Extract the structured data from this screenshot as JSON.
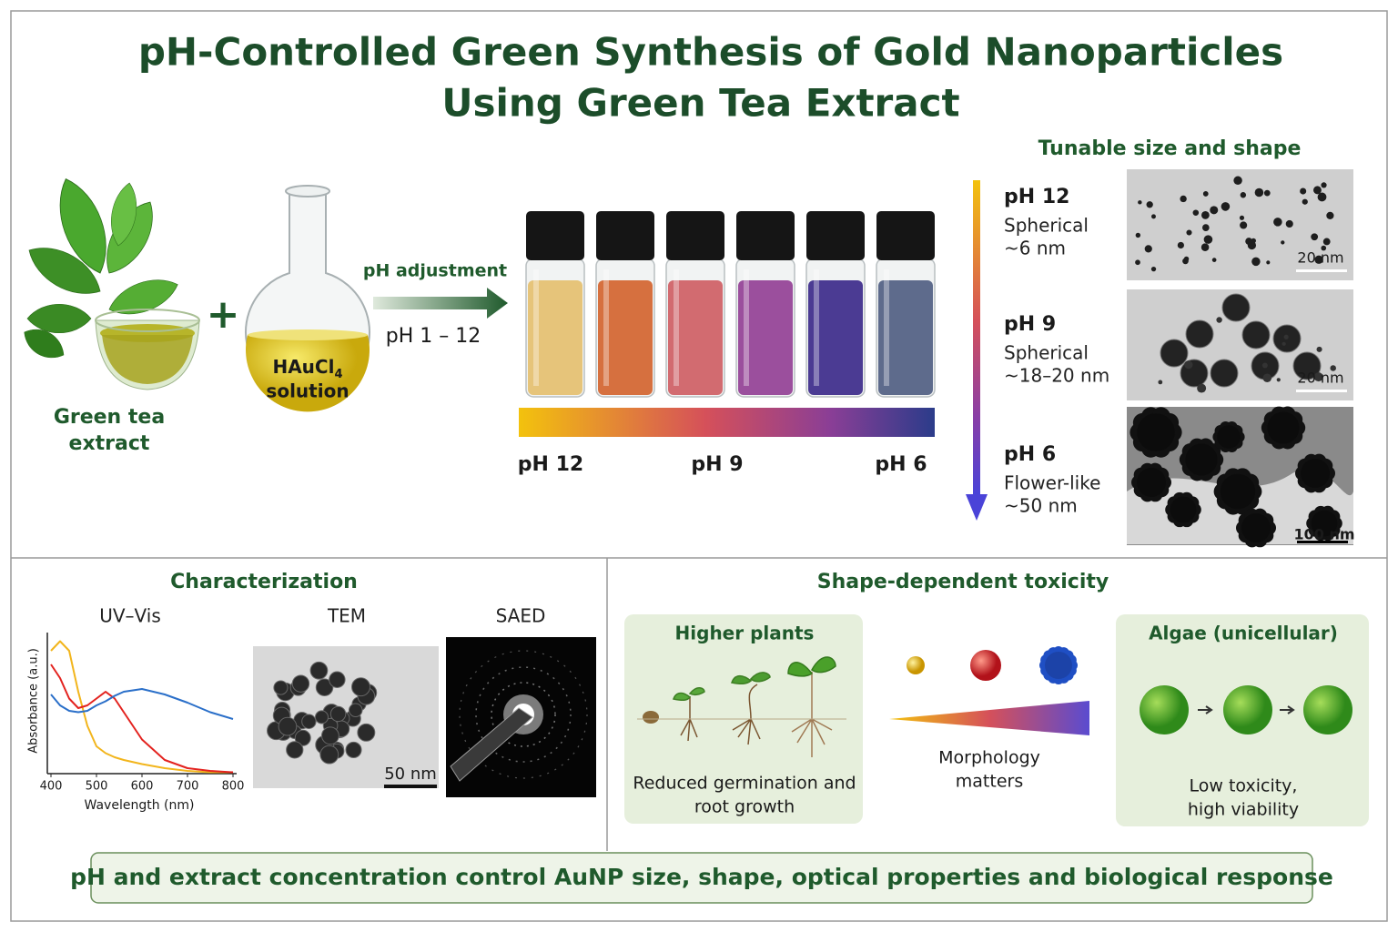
{
  "header": {
    "title_lines": [
      "pH-Controlled Green Synthesis of Gold Nanoparticles",
      "Using Green Tea Extract"
    ]
  },
  "synthesis": {
    "extract_label_lines": [
      "Green tea",
      "extract"
    ],
    "plus": "+",
    "precursor": {
      "formula": "HAuCl",
      "subscript": "4",
      "label": "solution"
    },
    "arrow_label": "pH adjustment",
    "ph_range": "pH 1 – 12",
    "vial_colors": [
      "#e6c47a",
      "#d6703f",
      "#d26b70",
      "#9b4f9d",
      "#4b3b93",
      "#5e6b8c"
    ],
    "gradient_labels": [
      {
        "text": "pH 12",
        "color": "#e3ad12"
      },
      {
        "text": "pH 9",
        "color": "#cc3f4c"
      },
      {
        "text": "pH 6",
        "color": "#2b3f8c"
      }
    ]
  },
  "morphology": {
    "title": "Tunable size and shape",
    "items": [
      {
        "ph": "pH 12",
        "color": "#e3ad12",
        "shape": "Spherical",
        "size": "~6 nm",
        "scale_bar": "20 nm"
      },
      {
        "ph": "pH 9",
        "color": "#cc3f4c",
        "shape": "Spherical",
        "size": "~18–20 nm",
        "scale_bar": "20 nm"
      },
      {
        "ph": "pH 6",
        "color": "#2b3f8c",
        "shape": "Flower-like",
        "size": "~50 nm",
        "scale_bar": "100 nm"
      }
    ]
  },
  "characterization": {
    "title": "Characterization",
    "uv_vis": {
      "title": "UV–Vis",
      "x_label": "Wavelength (nm)",
      "y_label": "Absorbance (a.u.)",
      "xlim": [
        400,
        800
      ],
      "xticks": [
        400,
        500,
        600,
        700,
        800
      ],
      "ylim": [
        0,
        1
      ],
      "x": [
        400,
        420,
        440,
        460,
        480,
        500,
        520,
        540,
        560,
        600,
        650,
        700,
        750,
        800
      ],
      "series": [
        {
          "color": "#f2b51c",
          "values": [
            0.9,
            0.97,
            0.9,
            0.6,
            0.35,
            0.2,
            0.15,
            0.12,
            0.1,
            0.07,
            0.04,
            0.02,
            0.01,
            0.01
          ]
        },
        {
          "color": "#e3231f",
          "values": [
            0.8,
            0.7,
            0.55,
            0.48,
            0.5,
            0.55,
            0.6,
            0.55,
            0.45,
            0.25,
            0.1,
            0.04,
            0.02,
            0.01
          ]
        },
        {
          "color": "#2a6fc9",
          "values": [
            0.58,
            0.5,
            0.46,
            0.45,
            0.46,
            0.5,
            0.53,
            0.57,
            0.6,
            0.62,
            0.58,
            0.52,
            0.45,
            0.4
          ]
        }
      ]
    },
    "tem": {
      "title": "TEM",
      "scale_bar": "50 nm"
    },
    "saed": {
      "title": "SAED"
    }
  },
  "toxicity": {
    "title": "Shape-dependent toxicity",
    "plants": {
      "title": "Higher plants",
      "caption_lines": [
        "Reduced germination and",
        "root growth"
      ]
    },
    "middle_lines": [
      "Morphology",
      "matters"
    ],
    "algae": {
      "title": "Algae (unicellular)",
      "caption_lines": [
        "Low toxicity,",
        "high viability"
      ]
    }
  },
  "footer": {
    "text": "pH and extract concentration control AuNP size, shape, optical properties and biological response"
  }
}
